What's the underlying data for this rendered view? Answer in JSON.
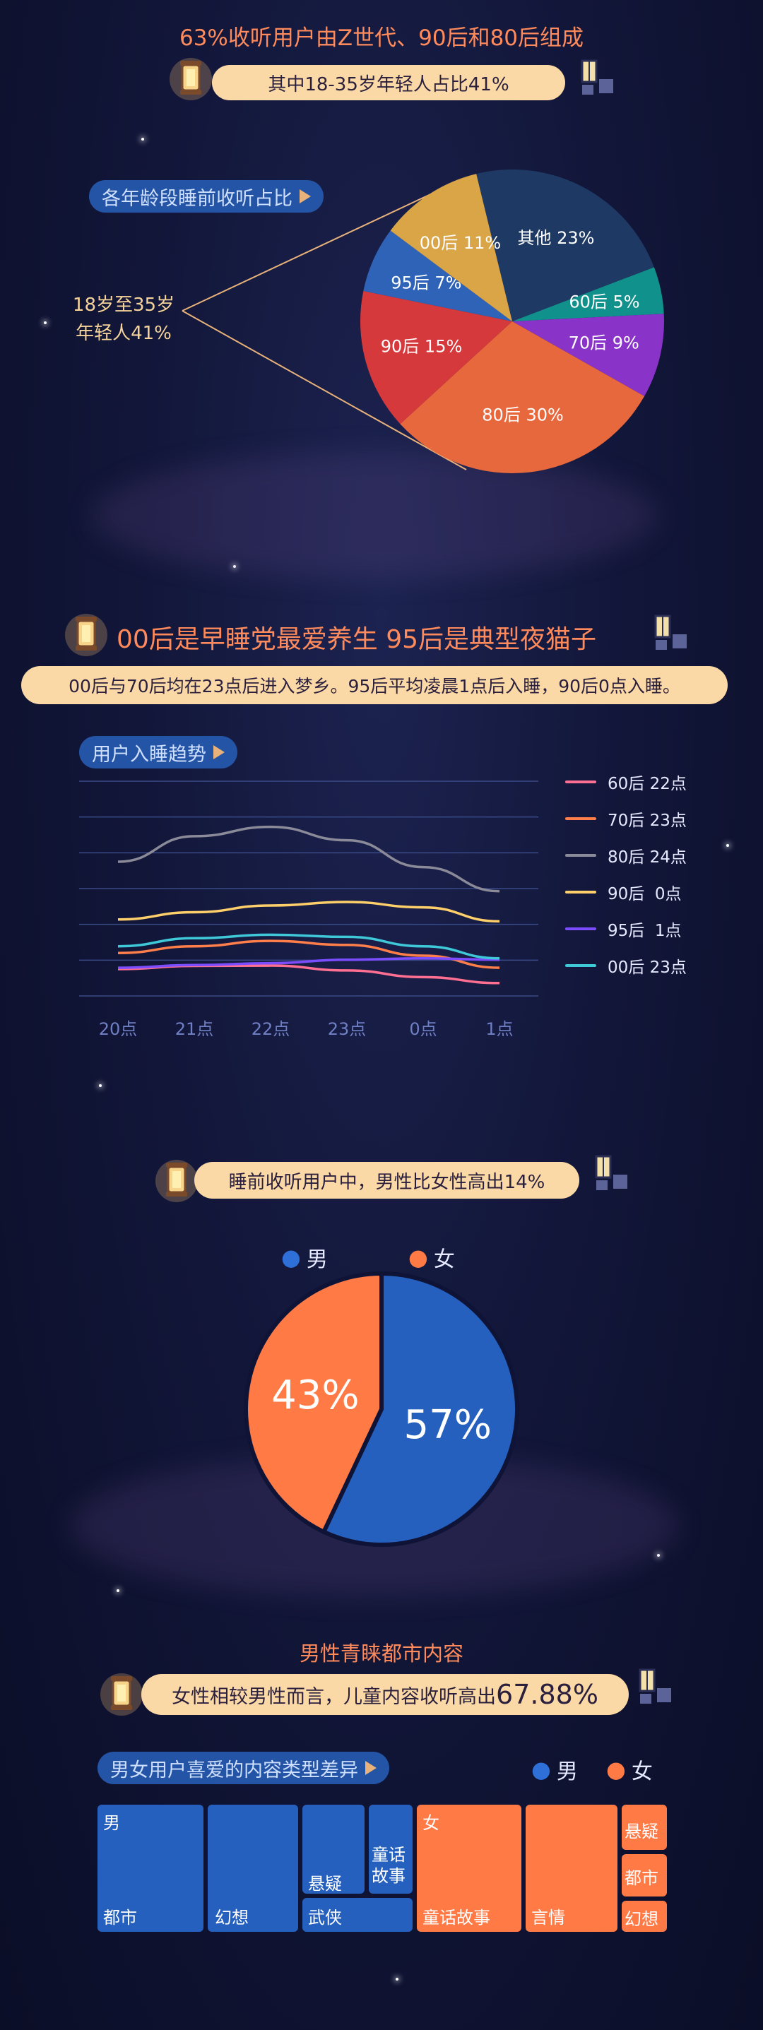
{
  "section1": {
    "headline": "63%收听用户由Z世代、90后和80后组成",
    "pill": "其中18-35岁年轻人占比41%",
    "tag": "各年龄段睡前收听占比",
    "callout_line1": "18岁至35岁",
    "callout_line2": "年轻人41%"
  },
  "section2": {
    "headline": "00后是早睡党最爱养生 95后是典型夜猫子",
    "pill": "00后与70后均在23点后进入梦乡。95后平均凌晨1点后入睡，90后0点入睡。",
    "tag": "用户入睡趋势"
  },
  "section3": {
    "pill": "睡前收听用户中，男性比女性高出14%",
    "legend_male": "男",
    "legend_female": "女"
  },
  "section4": {
    "headline": "男性青睐都市内容",
    "pill_text": "女性相较男性而言，儿童内容收听高出",
    "pill_value": "67.88%",
    "tag": "男女用户喜爱的内容类型差异",
    "legend_male": "男",
    "legend_female": "女"
  },
  "colors": {
    "male": "#2560be",
    "female": "#ff7a45",
    "accent": "#ff8a5b",
    "pill": "#fbd9a6",
    "tag": "#2454a6"
  },
  "chart_data": [
    {
      "type": "pie",
      "slices": [
        {
          "label": "其他 23%",
          "value": 23,
          "color": "#1e3a64"
        },
        {
          "label": "60后 5%",
          "value": 5,
          "color": "#11918c"
        },
        {
          "label": "70后 9%",
          "value": 9,
          "color": "#8a33c9"
        },
        {
          "label": "80后 30%",
          "value": 30,
          "color": "#e8683e"
        },
        {
          "label": "90后 15%",
          "value": 15,
          "color": "#d6393c"
        },
        {
          "label": "95后 7%",
          "value": 7,
          "color": "#2f63b8"
        },
        {
          "label": "00后 11%",
          "value": 11,
          "color": "#d9a546"
        }
      ]
    },
    {
      "type": "line",
      "categories": [
        "20点",
        "21点",
        "22点",
        "23点",
        "0点",
        "1点"
      ],
      "ylim": [
        0,
        8
      ],
      "series": [
        {
          "name": "60后 22点",
          "color": "#ff6f91",
          "values": [
            1.0,
            1.12,
            1.13,
            0.95,
            0.7,
            0.48
          ]
        },
        {
          "name": "70后 23点",
          "color": "#ff7e4a",
          "values": [
            1.6,
            1.85,
            2.05,
            1.9,
            1.5,
            1.05
          ]
        },
        {
          "name": "80后 24点",
          "color": "#8a8a99",
          "values": [
            5.0,
            5.95,
            6.3,
            5.8,
            4.8,
            3.9
          ]
        },
        {
          "name": "90后  0点",
          "color": "#ffcf6a",
          "values": [
            2.85,
            3.12,
            3.37,
            3.5,
            3.3,
            2.78
          ]
        },
        {
          "name": "95后  1点",
          "color": "#7b4dff",
          "values": [
            1.05,
            1.15,
            1.22,
            1.35,
            1.4,
            1.35
          ]
        },
        {
          "name": "00后 23点",
          "color": "#3fc8d8",
          "values": [
            1.85,
            2.15,
            2.28,
            2.2,
            1.85,
            1.4
          ]
        }
      ]
    },
    {
      "type": "pie",
      "slices": [
        {
          "label": "57%",
          "value": 57,
          "color": "#2560be",
          "name": "男"
        },
        {
          "label": "43%",
          "value": 43,
          "color": "#ff7a45",
          "name": "女"
        }
      ]
    },
    {
      "type": "treemap",
      "groups": [
        {
          "name": "男",
          "color": "#2560be",
          "items": [
            "都市",
            "幻想",
            "悬疑",
            "童话故事",
            "武侠"
          ]
        },
        {
          "name": "女",
          "color": "#ff7a45",
          "items": [
            "童话故事",
            "言情",
            "悬疑",
            "都市",
            "幻想"
          ]
        }
      ]
    }
  ]
}
